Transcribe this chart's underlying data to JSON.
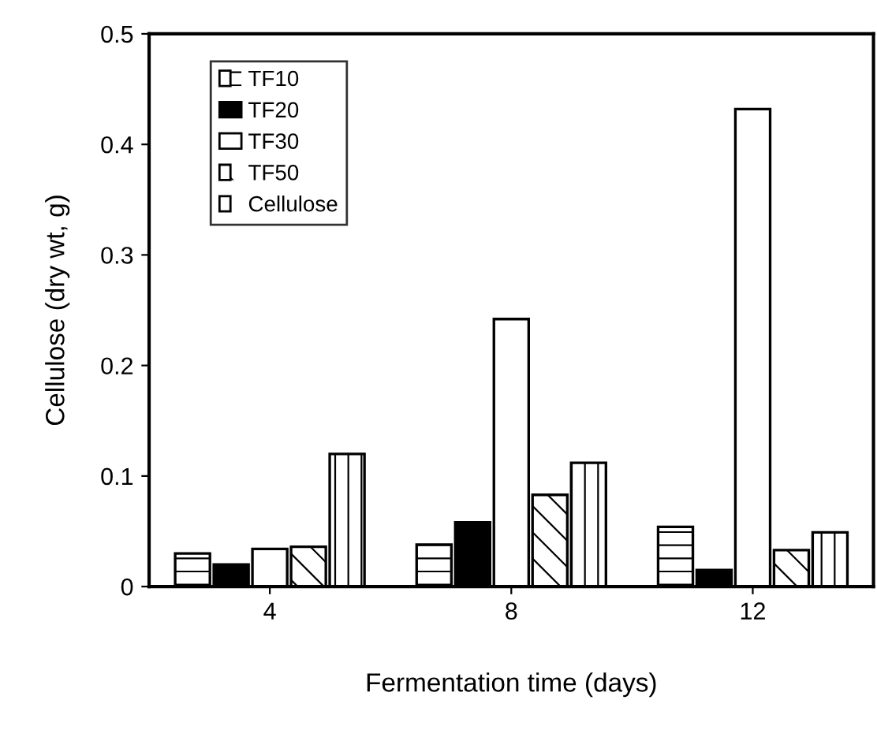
{
  "chart_data": {
    "type": "bar",
    "xlabel": "Fermentation time (days)",
    "ylabel": "Cellulose (dry wt, g)",
    "categories": [
      "4",
      "8",
      "12"
    ],
    "series": [
      {
        "name": "TF10",
        "color": "#ffffff",
        "values": [
          0.03,
          0.038,
          0.054
        ]
      },
      {
        "name": "TF20",
        "color": "#000000",
        "values": [
          0.02,
          0.058,
          0.015
        ]
      },
      {
        "name": "TF30",
        "color": "#ffffff",
        "values": [
          0.034,
          0.242,
          0.432
        ]
      },
      {
        "name": "TF50",
        "color": "#ffffff",
        "values": [
          0.036,
          0.083,
          0.033
        ]
      },
      {
        "name": "Cellulose",
        "color": "#ffffff",
        "values": [
          0.12,
          0.112,
          0.049
        ]
      }
    ],
    "ylim": [
      0,
      0.5
    ],
    "yticks": [
      0,
      0.1,
      0.2,
      0.3,
      0.4,
      0.5
    ],
    "grid": false,
    "legend": "top left"
  }
}
